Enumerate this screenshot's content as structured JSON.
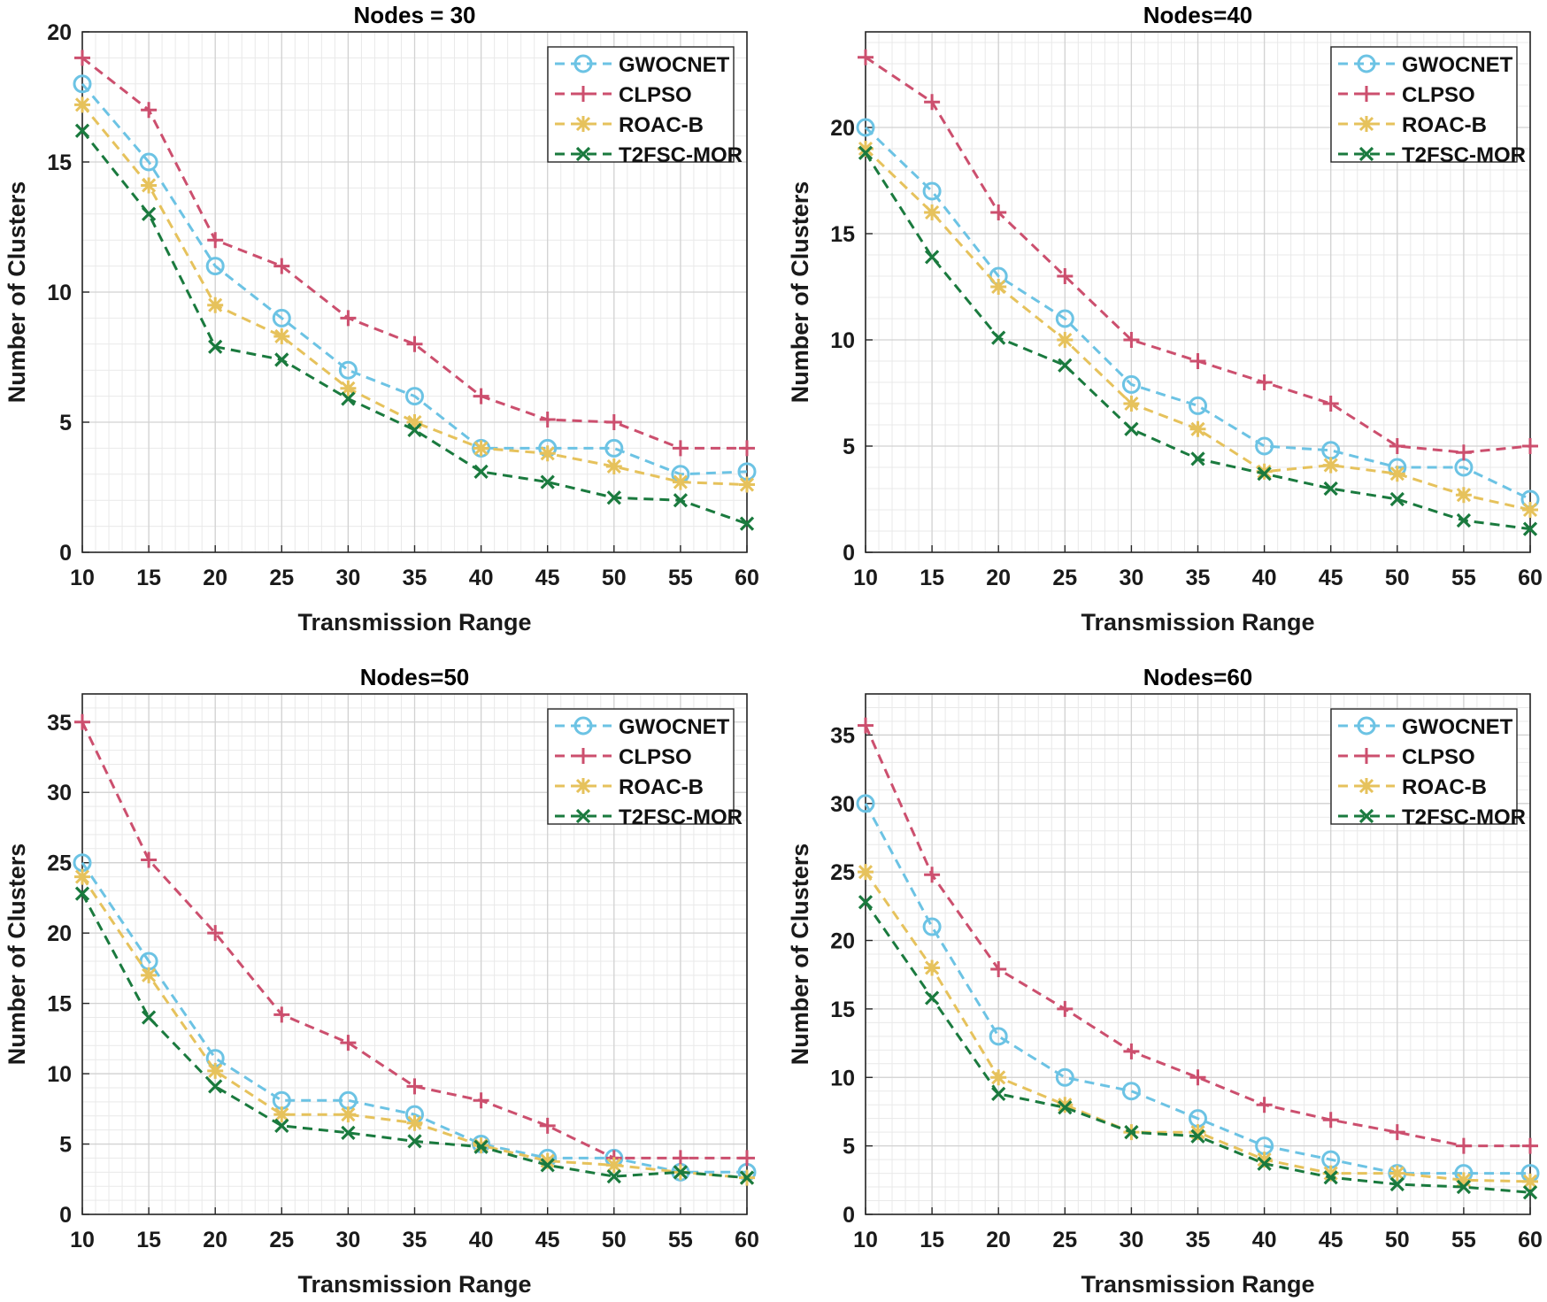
{
  "chart_data": [
    {
      "type": "line",
      "title": "Nodes = 30",
      "xlabel": "Transmission Range",
      "ylabel": "Number of Clusters",
      "x": [
        10,
        15,
        20,
        25,
        30,
        35,
        40,
        45,
        50,
        55,
        60
      ],
      "xlim": [
        10,
        60
      ],
      "ylim": [
        0,
        20
      ],
      "yticks": [
        0,
        5,
        10,
        15,
        20
      ],
      "grid": true,
      "legend_position": "top-right",
      "series": [
        {
          "name": "GWOCNET",
          "values": [
            18,
            15,
            11,
            9,
            7,
            6,
            4,
            4,
            4,
            3,
            3.1
          ]
        },
        {
          "name": "CLPSO",
          "values": [
            19,
            17,
            12,
            11,
            9,
            8,
            6,
            5.1,
            5,
            4,
            4
          ]
        },
        {
          "name": "ROAC-B",
          "values": [
            17.2,
            14.1,
            9.5,
            8.3,
            6.3,
            5,
            4,
            3.8,
            3.3,
            2.7,
            2.6
          ]
        },
        {
          "name": "T2FSC-MOR",
          "values": [
            16.2,
            13,
            7.9,
            7.4,
            5.9,
            4.7,
            3.1,
            2.7,
            2.1,
            2,
            1.1
          ]
        }
      ]
    },
    {
      "type": "line",
      "title": "Nodes=40",
      "xlabel": "Transmission Range",
      "ylabel": "Number of Clusters",
      "x": [
        10,
        15,
        20,
        25,
        30,
        35,
        40,
        45,
        50,
        55,
        60
      ],
      "xlim": [
        10,
        60
      ],
      "ylim": [
        0,
        24.5
      ],
      "yticks": [
        0,
        5,
        10,
        15,
        20
      ],
      "grid": true,
      "legend_position": "top-right",
      "series": [
        {
          "name": "GWOCNET",
          "values": [
            20,
            17,
            13,
            11,
            7.9,
            6.9,
            5,
            4.8,
            4,
            4,
            2.5
          ]
        },
        {
          "name": "CLPSO",
          "values": [
            23.3,
            21.2,
            16,
            13,
            10,
            9,
            8,
            7,
            5,
            4.7,
            5
          ]
        },
        {
          "name": "ROAC-B",
          "values": [
            19,
            16,
            12.5,
            10,
            7,
            5.8,
            3.8,
            4.1,
            3.7,
            2.7,
            2
          ]
        },
        {
          "name": "T2FSC-MOR",
          "values": [
            18.8,
            13.9,
            10.1,
            8.8,
            5.8,
            4.4,
            3.7,
            3,
            2.5,
            1.5,
            1.1
          ]
        }
      ]
    },
    {
      "type": "line",
      "title": "Nodes=50",
      "xlabel": "Transmission Range",
      "ylabel": "Number of Clusters",
      "x": [
        10,
        15,
        20,
        25,
        30,
        35,
        40,
        45,
        50,
        55,
        60
      ],
      "xlim": [
        10,
        60
      ],
      "ylim": [
        0,
        37
      ],
      "yticks": [
        0,
        5,
        10,
        15,
        20,
        25,
        30,
        35
      ],
      "grid": true,
      "legend_position": "top-right",
      "series": [
        {
          "name": "GWOCNET",
          "values": [
            25,
            18,
            11.1,
            8.1,
            8.1,
            7.1,
            5,
            4,
            4,
            3,
            3
          ]
        },
        {
          "name": "CLPSO",
          "values": [
            35,
            25.2,
            20,
            14.2,
            12.2,
            9.1,
            8.1,
            6.3,
            4,
            4,
            4
          ]
        },
        {
          "name": "ROAC-B",
          "values": [
            24,
            17,
            10.2,
            7.1,
            7.1,
            6.5,
            4.9,
            3.8,
            3.5,
            3,
            2.6
          ]
        },
        {
          "name": "T2FSC-MOR",
          "values": [
            22.8,
            14,
            9.1,
            6.3,
            5.8,
            5.2,
            4.8,
            3.5,
            2.7,
            3,
            2.6
          ]
        }
      ]
    },
    {
      "type": "line",
      "title": "Nodes=60",
      "xlabel": "Transmission Range",
      "ylabel": "Number of Clusters",
      "x": [
        10,
        15,
        20,
        25,
        30,
        35,
        40,
        45,
        50,
        55,
        60
      ],
      "xlim": [
        10,
        60
      ],
      "ylim": [
        0,
        38
      ],
      "yticks": [
        0,
        5,
        10,
        15,
        20,
        25,
        30,
        35
      ],
      "grid": true,
      "legend_position": "top-right",
      "series": [
        {
          "name": "GWOCNET",
          "values": [
            30,
            21,
            13,
            10,
            9,
            7,
            5,
            4,
            3,
            3,
            3
          ]
        },
        {
          "name": "CLPSO",
          "values": [
            35.7,
            24.8,
            17.9,
            15,
            11.9,
            10,
            8,
            6.9,
            6,
            5,
            5
          ]
        },
        {
          "name": "ROAC-B",
          "values": [
            25,
            18,
            10,
            8,
            6,
            6,
            4,
            3,
            3,
            2.5,
            2.4
          ]
        },
        {
          "name": "T2FSC-MOR",
          "values": [
            22.8,
            15.8,
            8.8,
            7.8,
            6,
            5.7,
            3.7,
            2.7,
            2.2,
            2,
            1.6
          ]
        }
      ]
    }
  ],
  "style": {
    "series_colors": {
      "GWOCNET": "#6cc3e4",
      "CLPSO": "#cc4f6e",
      "ROAC-B": "#e6c25c",
      "T2FSC-MOR": "#1a7a3e"
    },
    "series_markers": {
      "GWOCNET": "circle",
      "CLPSO": "plus",
      "ROAC-B": "asterisk",
      "T2FSC-MOR": "cross"
    }
  }
}
